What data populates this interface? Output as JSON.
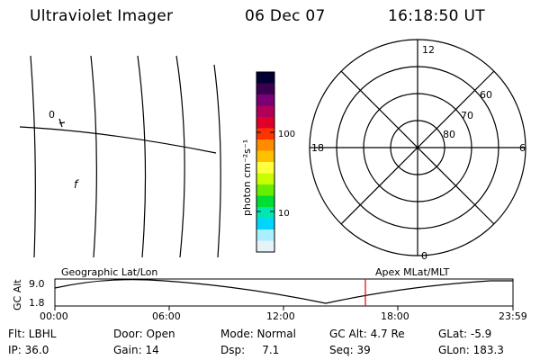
{
  "header": {
    "instrument": "Ultraviolet Imager",
    "date": "06 Dec 07",
    "time": "16:18:50 UT"
  },
  "geo_panel": {
    "label_zero": "0",
    "mark_glyph": "f"
  },
  "colorbar": {
    "unit_label": "photon cm⁻²s⁻¹",
    "ticks": [
      "100",
      "10"
    ],
    "colors": [
      "#000033",
      "#3c0050",
      "#7a0077",
      "#b0005a",
      "#e0002a",
      "#ff3300",
      "#ff8c00",
      "#ffc000",
      "#ffff40",
      "#c8ff00",
      "#66ee00",
      "#00dd33",
      "#00e8b0",
      "#00d4ff",
      "#aaeeff",
      "#e6f4f8"
    ]
  },
  "polar": {
    "mlt_labels": {
      "top": "12",
      "left": "18",
      "right": "6",
      "bottom": "0"
    },
    "lat_labels": [
      "60",
      "70",
      "80"
    ]
  },
  "timeline": {
    "left_label": "Geographic Lat/Lon",
    "right_label": "Apex MLat/MLT",
    "yaxis_label": "GC Alt",
    "ytick_top": "9.0",
    "ytick_bottom": "1.8",
    "xticks": [
      "00:00",
      "06:00",
      "12:00",
      "18:00",
      "23:59"
    ],
    "marker_color": "#dd0000"
  },
  "info": {
    "filter": "Flt: LBHL",
    "door": "Door: Open",
    "mode": "Mode: Normal",
    "gc_alt": "GC Alt: 4.7 Re",
    "glat": "GLat:  -5.9",
    "ip": "IP: 36.0",
    "gain": "Gain: 14",
    "dsp": "Dsp:     7.1",
    "seq": "Seq: 39",
    "glon": "GLon: 183.3"
  }
}
